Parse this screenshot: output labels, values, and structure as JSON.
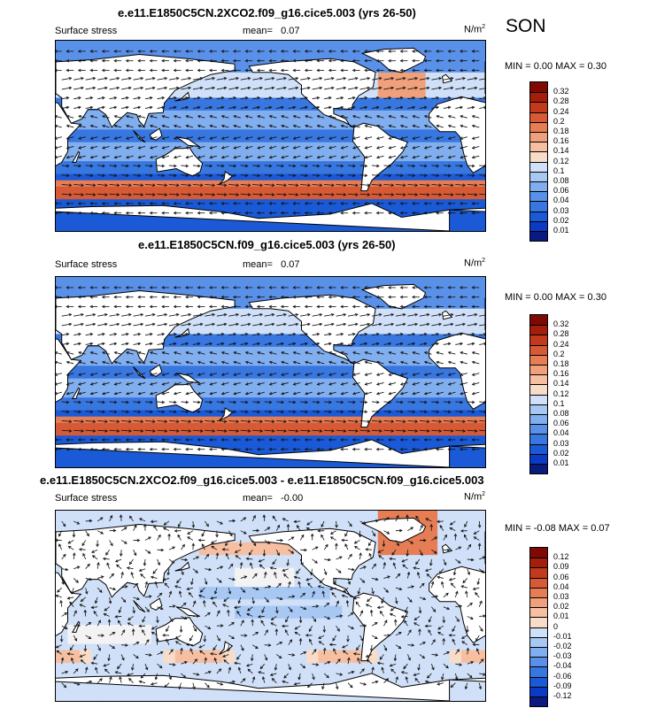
{
  "season": "SON",
  "colors": {
    "abs_scale": [
      "#0a1a7f",
      "#0b3bc4",
      "#1a5ad6",
      "#3876e0",
      "#5a91e8",
      "#80aeee",
      "#a8c8f4",
      "#cfe0f8",
      "#f3f3f3",
      "#f9dcc8",
      "#f6bfa2",
      "#f0a07a",
      "#e67d55",
      "#d65a35",
      "#c13a1c",
      "#a31f0c",
      "#7f0a04"
    ],
    "diff_scale": [
      "#0a1a7f",
      "#0b3bc4",
      "#1a5ad6",
      "#3876e0",
      "#5a91e8",
      "#80aeee",
      "#a8c8f4",
      "#cfe0f8",
      "#f3f3f3",
      "#f9dcc8",
      "#f6bfa2",
      "#f0a07a",
      "#e67d55",
      "#d65a35",
      "#c13a1c",
      "#a31f0c",
      "#7f0a04"
    ]
  },
  "panels": [
    {
      "title": "e.e11.E1850C5CN.2XCO2.f09_g16.cice5.003 (yrs 26-50)",
      "variable": "Surface stress",
      "mean_label": "mean=",
      "mean_value": "0.07",
      "units": "N/m",
      "units_sup": "2",
      "minmax": "MIN =  0.00 MAX =  0.30",
      "levels": [
        "0.32",
        "0.28",
        "0.24",
        "0.2",
        "0.18",
        "0.16",
        "0.14",
        "0.12",
        "0.1",
        "0.08",
        "0.06",
        "0.04",
        "0.03",
        "0.02",
        "0.01"
      ]
    },
    {
      "title": "e.e11.E1850C5CN.f09_g16.cice5.003 (yrs 26-50)",
      "variable": "Surface stress",
      "mean_label": "mean=",
      "mean_value": "0.07",
      "units": "N/m",
      "units_sup": "2",
      "minmax": "MIN =  0.00 MAX =  0.30",
      "levels": [
        "0.32",
        "0.28",
        "0.24",
        "0.2",
        "0.18",
        "0.16",
        "0.14",
        "0.12",
        "0.1",
        "0.08",
        "0.06",
        "0.04",
        "0.03",
        "0.02",
        "0.01"
      ]
    },
    {
      "title": "e.e11.E1850C5CN.2XCO2.f09_g16.cice5.003 - e.e11.E1850C5CN.f09_g16.cice5.003",
      "variable": "Surface stress",
      "mean_label": "mean=",
      "mean_value": "-0.00",
      "units": "N/m",
      "units_sup": "2",
      "minmax": "MIN = -0.08 MAX =  0.07",
      "levels": [
        "0.12",
        "0.09",
        "0.06",
        "0.04",
        "0.03",
        "0.02",
        "0.01",
        "0",
        "-0.01",
        "-0.02",
        "-0.03",
        "-0.04",
        "-0.06",
        "-0.09",
        "-0.12"
      ]
    }
  ]
}
